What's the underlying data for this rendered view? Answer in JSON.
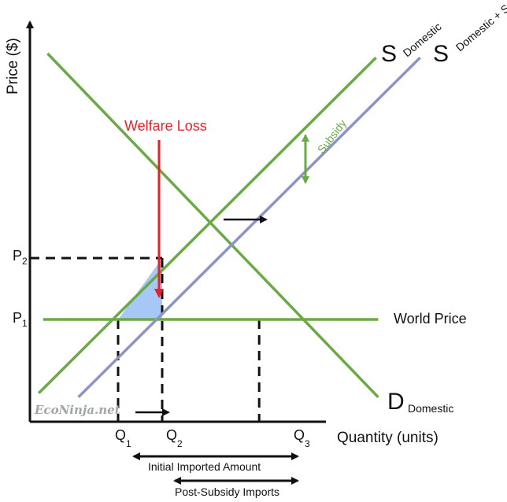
{
  "chart_data": {
    "type": "line",
    "title": "",
    "xlabel": "Quantity (units)",
    "ylabel": "Price ($)",
    "xlim": [
      0,
      10
    ],
    "ylim": [
      0,
      10
    ],
    "grid": false,
    "x_ticks": [
      {
        "main": "Q",
        "sub": "1",
        "x": 2
      },
      {
        "main": "Q",
        "sub": "2",
        "x": 3
      },
      {
        "main": "Q",
        "sub": "3",
        "x": 5.2
      }
    ],
    "y_ticks": [
      {
        "main": "P",
        "sub": "1",
        "y": 2.5
      },
      {
        "main": "P",
        "sub": "2",
        "y": 4
      }
    ],
    "series": [
      {
        "key": "supply",
        "label_main": "S",
        "label_sub": "Domestic",
        "color": "#6aaa46",
        "x": [
          0.2,
          7.85
        ],
        "y": [
          0.7,
          8.9
        ]
      },
      {
        "key": "supply_subsidy",
        "label_main": "S",
        "label_sub": "Domestic + Subsidy",
        "color": "#8c93c6",
        "x": [
          1.1,
          8.85
        ],
        "y": [
          0.6,
          8.9
        ]
      },
      {
        "key": "demand",
        "label_main": "D",
        "label_sub": "Domestic",
        "color": "#6aaa46",
        "x": [
          0.4,
          7.9
        ],
        "y": [
          9.0,
          0.6
        ]
      },
      {
        "key": "world_price",
        "label": "World Price",
        "color": "#6aaa46",
        "x": [
          0.3,
          7.9
        ],
        "y": [
          2.5,
          2.5
        ]
      }
    ],
    "annotations": {
      "welfare_loss": {
        "text": "Welfare Loss",
        "color": "#ee1c24"
      },
      "subsidy": {
        "text": "Subsidy",
        "color": "#6aaa46"
      },
      "triangle_fill": "#a7c8f7",
      "initial_imports": {
        "text": "Initial Imported Amount",
        "from": 2,
        "to": 5.2
      },
      "post_subsidy_imports": {
        "text": "Post-Subsidy Imports",
        "from": 3,
        "to": 5.2
      }
    },
    "watermark": "EcoNinja.net"
  }
}
